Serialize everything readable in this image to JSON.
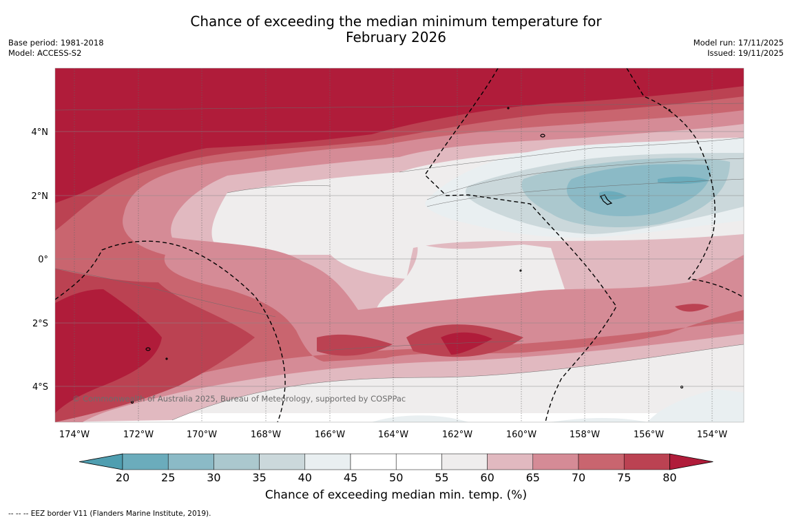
{
  "title": {
    "line1": "Chance of exceeding the median minimum temperature for",
    "line2": "February 2026"
  },
  "meta_left": {
    "base_period": "Base period: 1981-2018",
    "model": "Model: ACCESS-S2"
  },
  "meta_right": {
    "model_run": "Model run: 17/11/2025",
    "issued": "Issued: 19/11/2025"
  },
  "map": {
    "lon_labels": [
      "174°W",
      "172°W",
      "170°W",
      "168°W",
      "166°W",
      "164°W",
      "162°W",
      "160°W",
      "158°W",
      "156°W",
      "154°W"
    ],
    "lat_labels": [
      "4°N",
      "2°N",
      "0°",
      "2°S",
      "4°S"
    ],
    "copyright": "© Commonwealth of Australia 2025, Bureau of Meteorology, supported by COSPPac"
  },
  "colorbar": {
    "ticks": [
      "20",
      "25",
      "30",
      "35",
      "40",
      "45",
      "50",
      "55",
      "60",
      "65",
      "70",
      "75",
      "80"
    ],
    "colors": [
      "#4f9eb0",
      "#6bacbc",
      "#8bbac6",
      "#abc8ce",
      "#cbd8db",
      "#e9eff1",
      "#ffffff",
      "#ffffff",
      "#efeded",
      "#e1b9c0",
      "#d58b96",
      "#c9656f",
      "#bb4252",
      "#b01c3a"
    ],
    "label": "Chance of exceeding median min. temp. (%)"
  },
  "footer": "--  --  -- EEZ border V11 (Flanders Marine Institute, 2019)."
}
